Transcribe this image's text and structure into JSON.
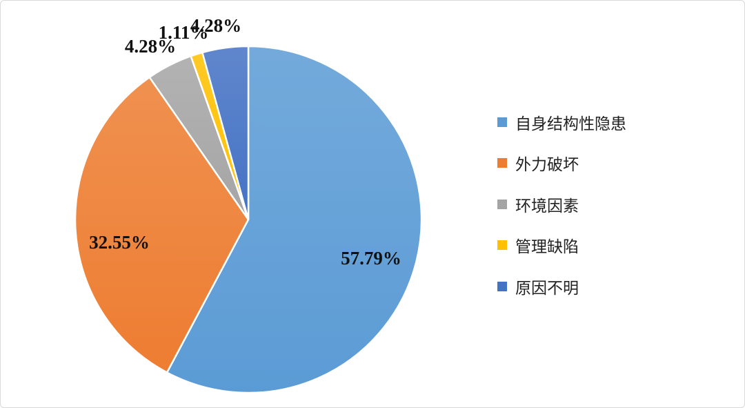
{
  "chart_data": {
    "type": "pie",
    "start_angle": "12 o'clock, clockwise",
    "legend_position": "right",
    "categories": [
      "自身结构性隐患",
      "外力破坏",
      "环境因素",
      "管理缺陷",
      "原因不明"
    ],
    "values": [
      57.79,
      32.55,
      4.28,
      1.11,
      4.28
    ],
    "data_labels": [
      "57.79%",
      "32.55%",
      "4.28%",
      "1.11%",
      "4.28%"
    ],
    "colors": [
      "#5B9BD5",
      "#ED7D31",
      "#A5A5A5",
      "#FFC000",
      "#4472C4"
    ]
  }
}
